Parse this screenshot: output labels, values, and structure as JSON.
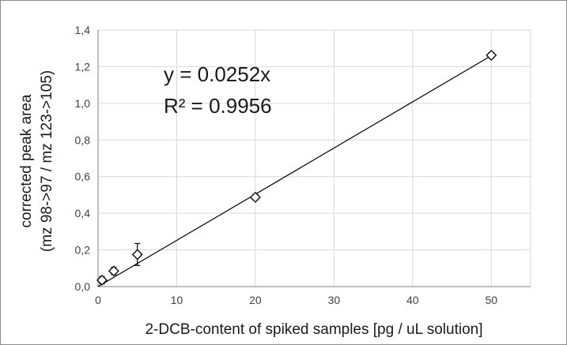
{
  "chart_data": {
    "type": "scatter",
    "xlabel": "2-DCB-content of spiked samples [pg / uL solution]",
    "ylabel_lines": [
      "corrected peak area",
      "(mz 98->97 / mz 123->105)"
    ],
    "xlim": [
      0,
      55
    ],
    "ylim": [
      0,
      1.4
    ],
    "x_ticks": [
      0,
      10,
      20,
      30,
      40,
      50
    ],
    "y_ticks": [
      0,
      0.2,
      0.4,
      0.6,
      0.8,
      1.0,
      1.2,
      1.4
    ],
    "x_tick_labels": [
      "0",
      "10",
      "20",
      "30",
      "40",
      "50"
    ],
    "y_tick_labels": [
      "0,0",
      "0,2",
      "0,4",
      "0,6",
      "0,8",
      "1,0",
      "1,2",
      "1,4"
    ],
    "grid": true,
    "points": [
      {
        "x": 0.5,
        "y": 0.035,
        "err": 0.02
      },
      {
        "x": 2,
        "y": 0.085,
        "err": 0.02
      },
      {
        "x": 5,
        "y": 0.175,
        "err": 0.06
      },
      {
        "x": 20,
        "y": 0.487,
        "err": 0.015
      },
      {
        "x": 50,
        "y": 1.262,
        "err": 0.015
      }
    ],
    "trendline": {
      "slope": 0.0252,
      "intercept": 0,
      "x_range": [
        0,
        50
      ]
    },
    "annotations": {
      "equation": "y = 0.0252x",
      "r_squared": "R² = 0.9956"
    },
    "colors": {
      "marker": "#000000",
      "grid": "#d9d9d9",
      "line": "#000000"
    }
  }
}
